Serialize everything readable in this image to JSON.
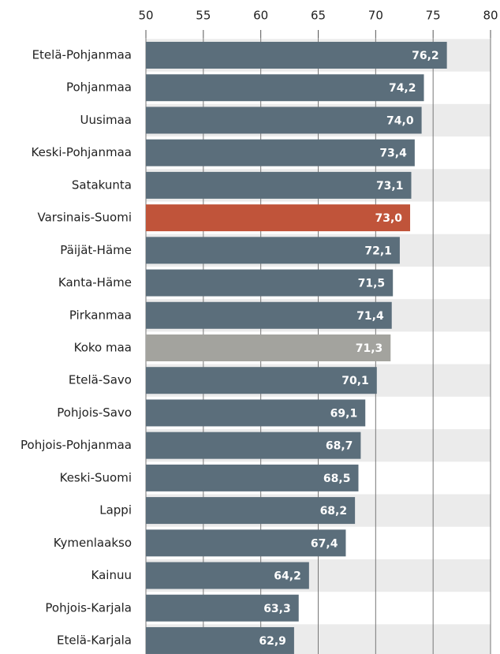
{
  "chart_data": {
    "type": "barh",
    "categories": [
      "Etelä-Pohjanmaa",
      "Pohjanmaa",
      "Uusimaa",
      "Keski-Pohjanmaa",
      "Satakunta",
      "Varsinais-Suomi",
      "Päijät-Häme",
      "Kanta-Häme",
      "Pirkanmaa",
      "Koko maa",
      "Etelä-Savo",
      "Pohjois-Savo",
      "Pohjois-Pohjanmaa",
      "Keski-Suomi",
      "Lappi",
      "Kymenlaakso",
      "Kainuu",
      "Pohjois-Karjala",
      "Etelä-Karjala"
    ],
    "values": [
      76.2,
      74.2,
      74.0,
      73.4,
      73.1,
      73.0,
      72.1,
      71.5,
      71.4,
      71.3,
      70.1,
      69.1,
      68.7,
      68.5,
      68.2,
      67.4,
      64.2,
      63.3,
      62.9
    ],
    "value_labels": [
      "76,2",
      "74,2",
      "74,0",
      "73,4",
      "73,1",
      "73,0",
      "72,1",
      "71,5",
      "71,4",
      "71,3",
      "70,1",
      "69,1",
      "68,7",
      "68,5",
      "68,2",
      "67,4",
      "64,2",
      "63,3",
      "62,9"
    ],
    "colors": [
      "#5b6e7b",
      "#5b6e7b",
      "#5b6e7b",
      "#5b6e7b",
      "#5b6e7b",
      "#c0543a",
      "#5b6e7b",
      "#5b6e7b",
      "#5b6e7b",
      "#a3a39e",
      "#5b6e7b",
      "#5b6e7b",
      "#5b6e7b",
      "#5b6e7b",
      "#5b6e7b",
      "#5b6e7b",
      "#5b6e7b",
      "#5b6e7b",
      "#5b6e7b"
    ],
    "xlim": [
      50,
      80
    ],
    "xticks": [
      50,
      55,
      60,
      65,
      70,
      75,
      80
    ],
    "grid": true
  }
}
